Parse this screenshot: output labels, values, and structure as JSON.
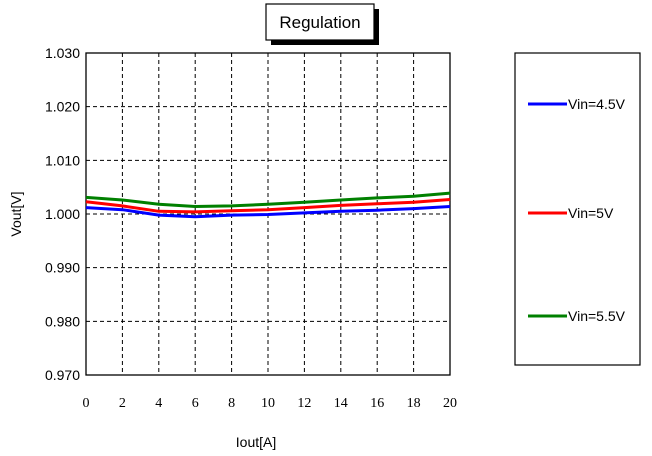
{
  "chart_data": {
    "type": "line",
    "title": "Regulation",
    "xlabel": "Iout[A]",
    "ylabel": "Vout[V]",
    "xlim": [
      0,
      20
    ],
    "ylim": [
      0.97,
      1.03
    ],
    "xticks": [
      "0",
      "2",
      "4",
      "6",
      "8",
      "10",
      "12",
      "14",
      "16",
      "18",
      "20"
    ],
    "yticks": [
      "1.030",
      "1.020",
      "1.010",
      "1.000",
      "0.990",
      "0.980",
      "0.970"
    ],
    "grid": true,
    "legend_position": "right",
    "x": [
      0,
      2,
      4,
      6,
      8,
      10,
      12,
      14,
      16,
      18,
      20
    ],
    "series": [
      {
        "name": "Vin=4.5V",
        "color": "#0000ff",
        "values": [
          1.0012,
          1.0008,
          0.9998,
          0.9995,
          0.9998,
          0.9999,
          1.0002,
          1.0005,
          1.0007,
          1.001,
          1.0014
        ]
      },
      {
        "name": "Vin=5V",
        "color": "#ff0000",
        "values": [
          1.0023,
          1.0015,
          1.0005,
          1.0004,
          1.0006,
          1.0008,
          1.0012,
          1.0016,
          1.0019,
          1.0022,
          1.0027
        ]
      },
      {
        "name": "Vin=5.5V",
        "color": "#008000",
        "values": [
          1.0031,
          1.0026,
          1.0018,
          1.0014,
          1.0015,
          1.0018,
          1.0022,
          1.0026,
          1.003,
          1.0033,
          1.0039
        ]
      }
    ]
  }
}
